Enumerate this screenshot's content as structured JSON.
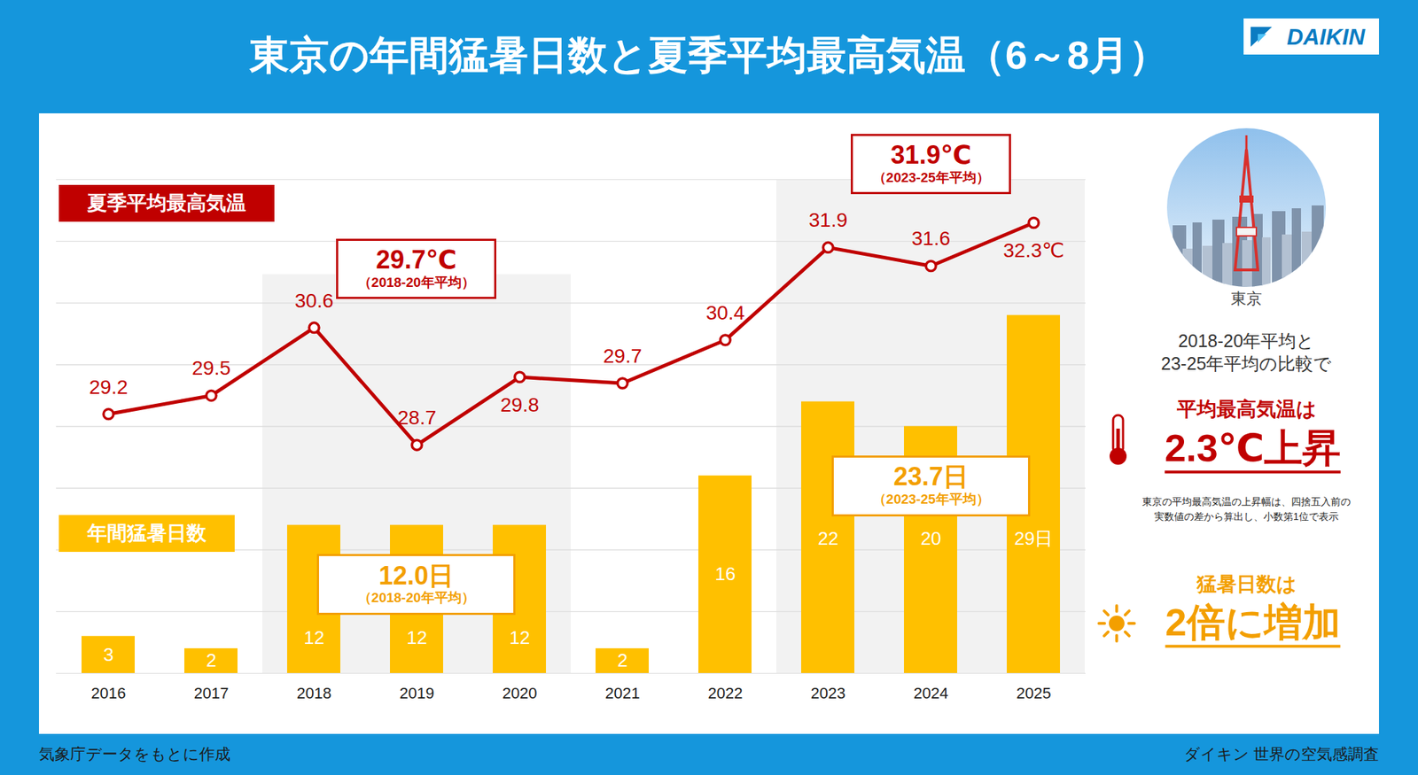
{
  "chart_data": {
    "type": "bar",
    "title": "東京の年間猛暑日数と夏季平均最高気温（6～8月）",
    "categories": [
      "2016",
      "2017",
      "2018",
      "2019",
      "2020",
      "2021",
      "2022",
      "2023",
      "2024",
      "2025"
    ],
    "series": [
      {
        "name": "年間猛暑日数",
        "type": "bar",
        "color": "#ffc000",
        "values": [
          3,
          2,
          12,
          12,
          12,
          2,
          16,
          22,
          20,
          29
        ],
        "value_labels": [
          "3",
          "2",
          "12",
          "12",
          "12",
          "2",
          "16",
          "22",
          "20",
          "29日"
        ]
      },
      {
        "name": "夏季平均最高気温",
        "type": "line",
        "axis": "y2",
        "color": "#c00000",
        "marker": "circle",
        "values": [
          29.2,
          29.5,
          30.6,
          28.7,
          29.8,
          29.7,
          30.4,
          31.9,
          31.6,
          32.3
        ],
        "value_labels": [
          "29.2",
          "29.5",
          "30.6",
          "28.7",
          "29.8",
          "29.7",
          "30.4",
          "31.9",
          "31.6",
          "32.3℃"
        ]
      }
    ],
    "ylim": [
      0,
      40
    ],
    "yticks": [
      0,
      5,
      10,
      15,
      20,
      25,
      30,
      35,
      40
    ],
    "y2lim": [
      25,
      33
    ],
    "y2ticks": [
      25,
      26,
      27,
      28,
      29,
      30,
      31,
      32,
      33
    ],
    "grid": true,
    "data_labels": true,
    "tick_labels": "x",
    "periods": [
      {
        "categories": [
          "2018",
          "2019",
          "2020"
        ],
        "annotations": [
          {
            "series": "夏季平均最高気温",
            "text": "29.7℃",
            "subtext": "（2018-20年平均）"
          },
          {
            "series": "年間猛暑日数",
            "text": "12.0日",
            "subtext": "（2018-20年平均）"
          }
        ]
      },
      {
        "categories": [
          "2023",
          "2024",
          "2025"
        ],
        "annotations": [
          {
            "series": "夏季平均最高気温",
            "text": "31.9℃",
            "subtext": "（2023-25年平均）"
          },
          {
            "series": "年間猛暑日数",
            "text": "23.7日",
            "subtext": "（2023-25年平均）"
          }
        ]
      }
    ],
    "summary": {
      "photo_caption": "東京",
      "comparison": [
        "2018-20年平均と",
        "23-25年平均の比較で"
      ],
      "temp_heading": "平均最高気温は",
      "temp_result": "2.3℃上昇",
      "note": [
        "東京の平均最高気温の上昇幅は、四捨五入前の",
        "実数値の差から算出し、小数第1位で表示"
      ],
      "days_heading": "猛暑日数は",
      "days_result": "2倍に増加"
    },
    "logo": "DAIKIN",
    "source": "気象庁データをもとに作成",
    "credit": "ダイキン 世界の空気感調査"
  }
}
